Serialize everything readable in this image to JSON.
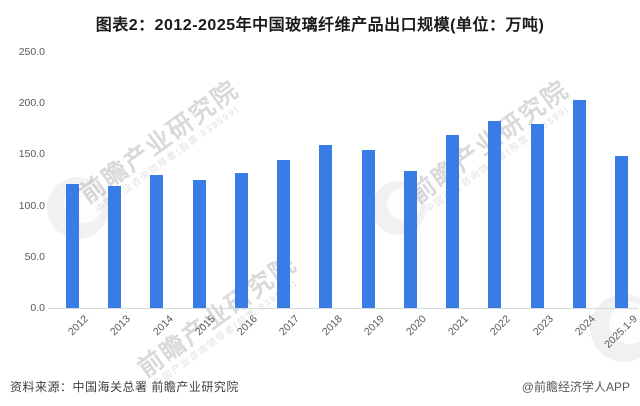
{
  "title": "图表2：2012-2025年中国玻璃纤维产品出口规模(单位：万吨)",
  "chart_data": {
    "type": "bar",
    "title": "图表2：2012-2025年中国玻璃纤维产品出口规模(单位：万吨)",
    "categories": [
      "2012",
      "2013",
      "2014",
      "2015",
      "2016",
      "2017",
      "2018",
      "2019",
      "2020",
      "2021",
      "2022",
      "2023",
      "2024",
      "2025.1-9"
    ],
    "values": [
      121,
      119,
      130,
      125,
      132,
      145,
      159,
      154,
      134,
      169,
      183,
      180,
      203,
      148
    ],
    "unit": "万吨",
    "xlabel": "",
    "ylabel": "",
    "ylim": [
      0,
      250
    ],
    "yticks": [
      "250.0",
      "200.0",
      "150.0",
      "100.0",
      "50.0",
      "0.0"
    ],
    "grid": false,
    "legend": "none",
    "bar_color": "#3a7ce6"
  },
  "watermark": {
    "logo": "qianzhan-logo",
    "main": "前瞻产业研究院",
    "sub": "中国产业咨询领导者(股票:839599)"
  },
  "footer": {
    "source": "资料来源：中国海关总署 前瞻产业研究院",
    "credit": "@前瞻经济学人APP"
  }
}
